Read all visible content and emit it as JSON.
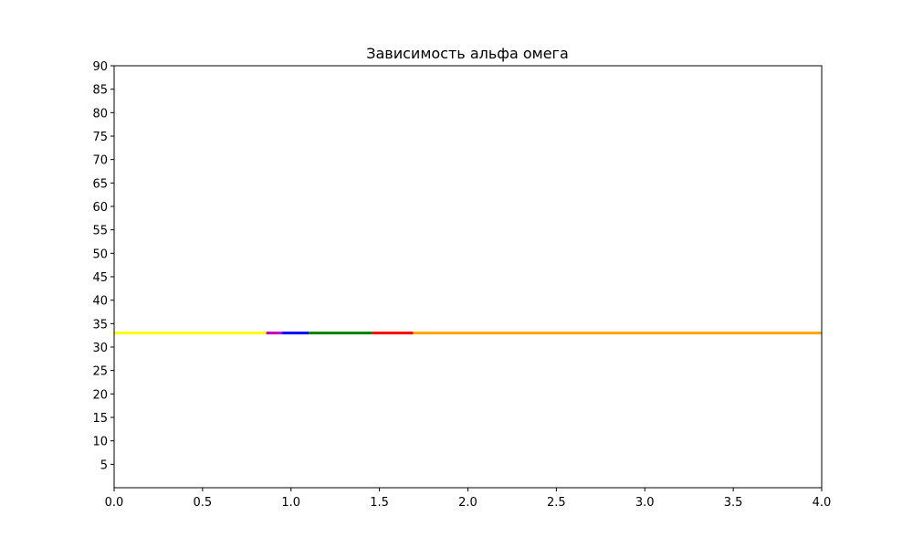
{
  "chart_data": {
    "type": "line",
    "title": "Зависимость альфа омега",
    "xlabel": "",
    "ylabel": "",
    "xlim": [
      0.0,
      4.0
    ],
    "ylim": [
      0,
      90
    ],
    "x_ticks": [
      "0.0",
      "0.5",
      "1.0",
      "1.5",
      "2.0",
      "2.5",
      "3.0",
      "3.5",
      "4.0"
    ],
    "y_ticks": [
      "5",
      "10",
      "15",
      "20",
      "25",
      "30",
      "35",
      "40",
      "45",
      "50",
      "55",
      "60",
      "65",
      "70",
      "75",
      "80",
      "85",
      "90"
    ],
    "grid": false,
    "series": [
      {
        "color": "#ffff00",
        "x": [
          0.0,
          0.86
        ],
        "y": [
          33,
          33
        ]
      },
      {
        "color": "#bf00bf",
        "x": [
          0.86,
          0.95
        ],
        "y": [
          33,
          33
        ]
      },
      {
        "color": "#0000ff",
        "x": [
          0.95,
          1.1
        ],
        "y": [
          33,
          33
        ]
      },
      {
        "color": "#008000",
        "x": [
          1.1,
          1.46
        ],
        "y": [
          33,
          33
        ]
      },
      {
        "color": "#ff0000",
        "x": [
          1.46,
          1.69
        ],
        "y": [
          33,
          33
        ]
      },
      {
        "color": "#ffa500",
        "x": [
          1.69,
          4.0
        ],
        "y": [
          33,
          33
        ]
      }
    ]
  }
}
